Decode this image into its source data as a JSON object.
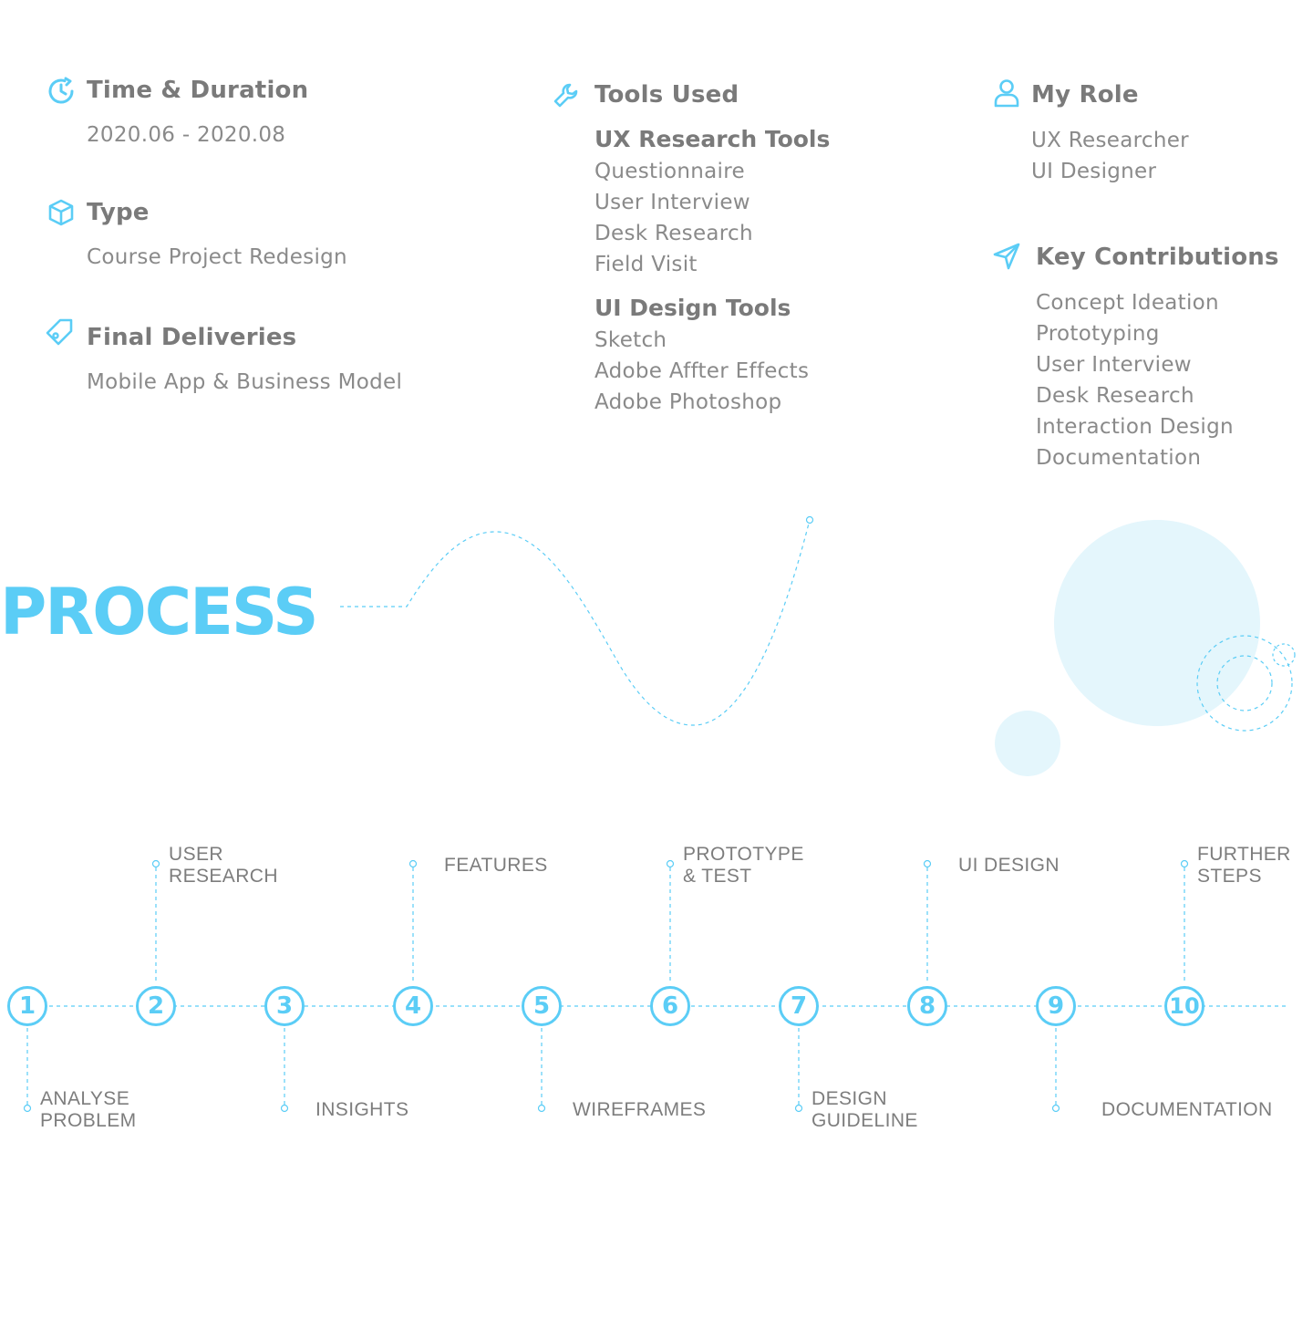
{
  "accent_color": "#5bcdf6",
  "text_color": "#8a8a8a",
  "info": {
    "time": {
      "icon": "clock-icon",
      "title": "Time & Duration",
      "value": "2020.06 - 2020.08"
    },
    "type": {
      "icon": "cube-icon",
      "title": "Type",
      "value": "Course Project Redesign"
    },
    "deliveries": {
      "icon": "tag-icon",
      "title": "Final Deliveries",
      "value": "Mobile App & Business Model"
    },
    "tools": {
      "icon": "wrench-icon",
      "title": "Tools Used",
      "ux_title": "UX Research Tools",
      "ux_items": [
        "Questionnaire",
        "User Interview",
        "Desk Research",
        "Field Visit"
      ],
      "ui_title": "UI Design Tools",
      "ui_items": [
        "Sketch",
        "Adobe Affter Effects",
        "Adobe Photoshop"
      ]
    },
    "role": {
      "icon": "user-icon",
      "title": "My Role",
      "items": [
        "UX Researcher",
        "UI Designer"
      ]
    },
    "contributions": {
      "icon": "send-icon",
      "title": "Key Contributions",
      "items": [
        "Concept Ideation",
        "Prototyping",
        "User Interview",
        "Desk Research",
        "Interaction Design",
        "Documentation"
      ]
    }
  },
  "process": {
    "title": "PROCESS",
    "steps": [
      {
        "number": "1",
        "label": [
          "ANALYSE",
          "PROBLEM"
        ]
      },
      {
        "number": "2",
        "label": [
          "USER",
          "RESEARCH"
        ]
      },
      {
        "number": "3",
        "label": [
          "INSIGHTS"
        ]
      },
      {
        "number": "4",
        "label": [
          "FEATURES"
        ]
      },
      {
        "number": "5",
        "label": [
          "WIREFRAMES"
        ]
      },
      {
        "number": "6",
        "label": [
          "PROTOTYPE",
          "& TEST"
        ]
      },
      {
        "number": "7",
        "label": [
          "DESIGN",
          "GUIDELINE"
        ]
      },
      {
        "number": "8",
        "label": [
          "UI DESIGN"
        ]
      },
      {
        "number": "9",
        "label": [
          "DOCUMENTATION"
        ]
      },
      {
        "number": "10",
        "label": [
          "FURTHER",
          "STEPS"
        ]
      }
    ]
  }
}
